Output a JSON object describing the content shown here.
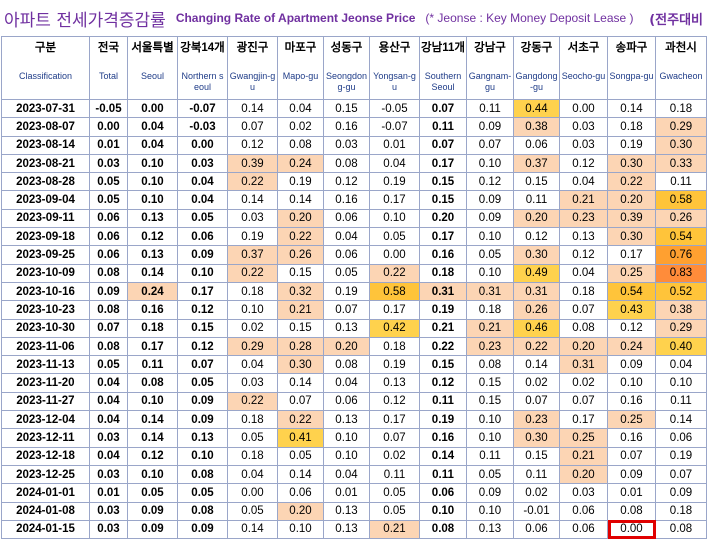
{
  "header": {
    "title_ko": "아파트 전세가격증감률",
    "title_en": "Changing Rate of Apartment Jeonse Price",
    "note": "(* Jeonse : Key Money Deposit Lease )",
    "compare": "(전주대비"
  },
  "table": {
    "columns": [
      {
        "ko": "구분",
        "en": "Classification"
      },
      {
        "ko": "전국",
        "en": "Total"
      },
      {
        "ko": "서울특별",
        "en": "Seoul"
      },
      {
        "ko": "강북14개",
        "en": "Northern seoul"
      },
      {
        "ko": "광진구",
        "en": "Gwangjin-gu"
      },
      {
        "ko": "마포구",
        "en": "Mapo-gu"
      },
      {
        "ko": "성동구",
        "en": "Seongdong-gu"
      },
      {
        "ko": "용산구",
        "en": "Yongsan-gu"
      },
      {
        "ko": "강남11개",
        "en": "Southern Seoul"
      },
      {
        "ko": "강남구",
        "en": "Gangnam-gu"
      },
      {
        "ko": "강동구",
        "en": "Gangdong-gu"
      },
      {
        "ko": "서초구",
        "en": "Seocho-gu"
      },
      {
        "ko": "송파구",
        "en": "Songpa-gu"
      },
      {
        "ko": "과천시",
        "en": "Gwacheon"
      }
    ],
    "rows": [
      {
        "date": "2023-07-31",
        "values": [
          "-0.05",
          "0.00",
          "-0.07",
          "0.14",
          "0.04",
          "0.15",
          "-0.05",
          "0.07",
          "0.11",
          "0.44",
          "0.00",
          "0.14",
          "0.18"
        ]
      },
      {
        "date": "2023-08-07",
        "values": [
          "0.00",
          "0.04",
          "-0.03",
          "0.07",
          "0.02",
          "0.16",
          "-0.07",
          "0.11",
          "0.09",
          "0.38",
          "0.03",
          "0.18",
          "0.29"
        ]
      },
      {
        "date": "2023-08-14",
        "values": [
          "0.01",
          "0.04",
          "0.00",
          "0.12",
          "0.08",
          "0.03",
          "0.01",
          "0.07",
          "0.07",
          "0.06",
          "0.03",
          "0.19",
          "0.30"
        ]
      },
      {
        "date": "2023-08-21",
        "values": [
          "0.03",
          "0.10",
          "0.03",
          "0.39",
          "0.24",
          "0.08",
          "0.04",
          "0.17",
          "0.10",
          "0.37",
          "0.12",
          "0.30",
          "0.33"
        ]
      },
      {
        "date": "2023-08-28",
        "values": [
          "0.05",
          "0.10",
          "0.04",
          "0.22",
          "0.19",
          "0.12",
          "0.19",
          "0.15",
          "0.12",
          "0.15",
          "0.04",
          "0.22",
          "0.11"
        ]
      },
      {
        "date": "2023-09-04",
        "values": [
          "0.05",
          "0.10",
          "0.04",
          "0.14",
          "0.14",
          "0.16",
          "0.17",
          "0.15",
          "0.09",
          "0.11",
          "0.21",
          "0.20",
          "0.58"
        ]
      },
      {
        "date": "2023-09-11",
        "values": [
          "0.06",
          "0.13",
          "0.05",
          "0.03",
          "0.20",
          "0.06",
          "0.10",
          "0.20",
          "0.09",
          "0.20",
          "0.23",
          "0.39",
          "0.26"
        ]
      },
      {
        "date": "2023-09-18",
        "values": [
          "0.06",
          "0.12",
          "0.06",
          "0.19",
          "0.22",
          "0.04",
          "0.05",
          "0.17",
          "0.10",
          "0.12",
          "0.13",
          "0.30",
          "0.54"
        ]
      },
      {
        "date": "2023-09-25",
        "values": [
          "0.06",
          "0.13",
          "0.09",
          "0.37",
          "0.26",
          "0.06",
          "0.00",
          "0.16",
          "0.05",
          "0.30",
          "0.12",
          "0.17",
          "0.76"
        ]
      },
      {
        "date": "2023-10-09",
        "values": [
          "0.08",
          "0.14",
          "0.10",
          "0.22",
          "0.15",
          "0.05",
          "0.22",
          "0.18",
          "0.10",
          "0.49",
          "0.04",
          "0.25",
          "0.83"
        ]
      },
      {
        "date": "2023-10-16",
        "values": [
          "0.09",
          "0.24",
          "0.17",
          "0.18",
          "0.32",
          "0.19",
          "0.58",
          "0.31",
          "0.31",
          "0.31",
          "0.18",
          "0.54",
          "0.52"
        ]
      },
      {
        "date": "2023-10-23",
        "values": [
          "0.08",
          "0.16",
          "0.12",
          "0.10",
          "0.21",
          "0.07",
          "0.17",
          "0.19",
          "0.18",
          "0.26",
          "0.07",
          "0.43",
          "0.38"
        ]
      },
      {
        "date": "2023-10-30",
        "values": [
          "0.07",
          "0.18",
          "0.15",
          "0.02",
          "0.15",
          "0.13",
          "0.42",
          "0.21",
          "0.21",
          "0.46",
          "0.08",
          "0.12",
          "0.29"
        ]
      },
      {
        "date": "2023-11-06",
        "values": [
          "0.08",
          "0.17",
          "0.12",
          "0.29",
          "0.28",
          "0.20",
          "0.18",
          "0.22",
          "0.23",
          "0.22",
          "0.20",
          "0.24",
          "0.40"
        ]
      },
      {
        "date": "2023-11-13",
        "values": [
          "0.05",
          "0.11",
          "0.07",
          "0.04",
          "0.30",
          "0.08",
          "0.19",
          "0.15",
          "0.08",
          "0.14",
          "0.31",
          "0.09",
          "0.04"
        ]
      },
      {
        "date": "2023-11-20",
        "values": [
          "0.04",
          "0.08",
          "0.05",
          "0.03",
          "0.14",
          "0.04",
          "0.13",
          "0.12",
          "0.15",
          "0.02",
          "0.02",
          "0.10",
          "0.10"
        ]
      },
      {
        "date": "2023-11-27",
        "values": [
          "0.04",
          "0.10",
          "0.09",
          "0.22",
          "0.07",
          "0.06",
          "0.12",
          "0.11",
          "0.15",
          "0.07",
          "0.07",
          "0.16",
          "0.11"
        ]
      },
      {
        "date": "2023-12-04",
        "values": [
          "0.04",
          "0.14",
          "0.09",
          "0.18",
          "0.22",
          "0.13",
          "0.17",
          "0.19",
          "0.10",
          "0.23",
          "0.17",
          "0.25",
          "0.14"
        ]
      },
      {
        "date": "2023-12-11",
        "values": [
          "0.03",
          "0.14",
          "0.13",
          "0.05",
          "0.41",
          "0.10",
          "0.07",
          "0.16",
          "0.10",
          "0.30",
          "0.25",
          "0.16",
          "0.06"
        ]
      },
      {
        "date": "2023-12-18",
        "values": [
          "0.04",
          "0.12",
          "0.10",
          "0.18",
          "0.05",
          "0.10",
          "0.02",
          "0.14",
          "0.11",
          "0.15",
          "0.21",
          "0.07",
          "0.19"
        ]
      },
      {
        "date": "2023-12-25",
        "values": [
          "0.03",
          "0.10",
          "0.08",
          "0.04",
          "0.14",
          "0.04",
          "0.11",
          "0.11",
          "0.05",
          "0.11",
          "0.20",
          "0.09",
          "0.07"
        ]
      },
      {
        "date": "2024-01-01",
        "values": [
          "0.01",
          "0.05",
          "0.05",
          "0.00",
          "0.06",
          "0.01",
          "0.05",
          "0.06",
          "0.09",
          "0.02",
          "0.03",
          "0.01",
          "0.09"
        ]
      },
      {
        "date": "2024-01-08",
        "values": [
          "0.03",
          "0.09",
          "0.08",
          "0.05",
          "0.20",
          "0.13",
          "0.05",
          "0.10",
          "0.10",
          "-0.01",
          "0.06",
          "0.08",
          "0.18"
        ]
      },
      {
        "date": "2024-01-15",
        "values": [
          "0.03",
          "0.09",
          "0.09",
          "0.14",
          "0.10",
          "0.13",
          "0.21",
          "0.08",
          "0.13",
          "0.06",
          "0.06",
          "0.00",
          "0.08"
        ]
      }
    ]
  }
}
